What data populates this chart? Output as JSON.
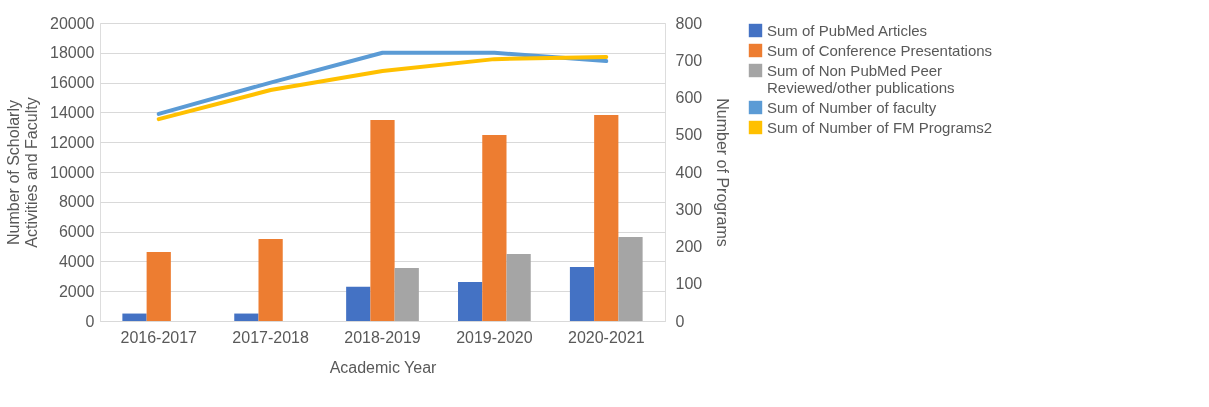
{
  "chart_data": {
    "type": "bar",
    "categories": [
      "2016-2017",
      "2017-2018",
      "2018-2019",
      "2019-2020",
      "2020-2021"
    ],
    "xlabel": "Academic Year",
    "ylabel": "Number of Scholarly Activities and Faculty",
    "y2label": "Number of Programs",
    "ylim": [
      0,
      20000
    ],
    "yticks": [
      0,
      2000,
      4000,
      6000,
      8000,
      10000,
      12000,
      14000,
      16000,
      18000,
      20000
    ],
    "y2lim": [
      0,
      800
    ],
    "y2ticks": [
      0,
      100,
      200,
      300,
      400,
      500,
      600,
      700,
      800
    ],
    "grid": "y",
    "legend": "right",
    "series": [
      {
        "name": "Sum of PubMed Articles",
        "color": "#4472c4",
        "values": [
          500,
          500,
          2300,
          2620,
          3620
        ]
      },
      {
        "name": "Sum of Conference Presentations",
        "color": "#ed7d31",
        "values": [
          4630,
          5500,
          13490,
          12480,
          13830
        ]
      },
      {
        "name": "Sum of Non PubMed Peer Reviewed/other publications",
        "color": "#a5a5a5",
        "values": [
          null,
          null,
          3560,
          4500,
          5640
        ]
      },
      {
        "name": "Sum of Number of faculty",
        "type": "line",
        "color": "#5b9bd5",
        "values": [
          13900,
          16000,
          18000,
          18000,
          17450
        ]
      },
      {
        "name": "Sum of Number of FM Programs2",
        "type": "line",
        "axis": "y2",
        "color": "#ffc000",
        "values": [
          542,
          620,
          671,
          703,
          709
        ]
      }
    ]
  }
}
